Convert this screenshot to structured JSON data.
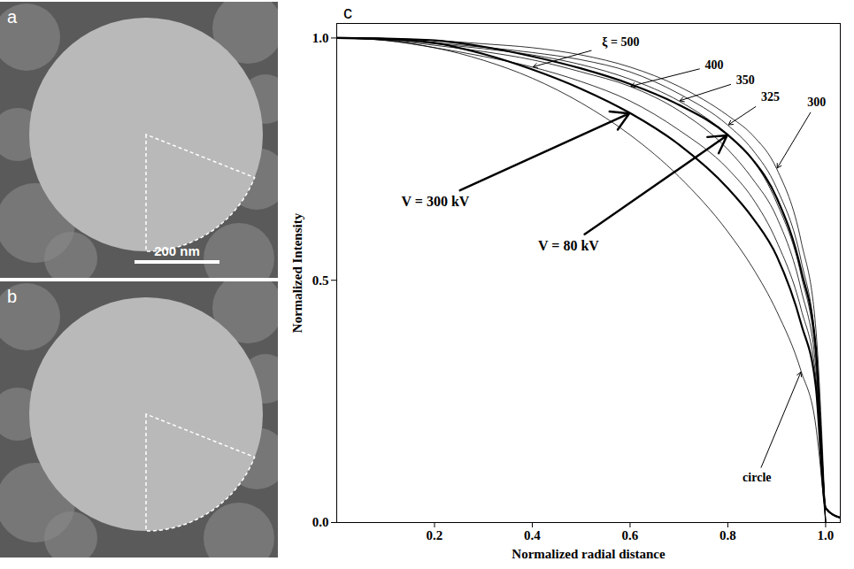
{
  "panels": [
    {
      "label": "a",
      "scale_bar": "200 nm"
    },
    {
      "label": "b"
    }
  ],
  "chart_data": {
    "type": "line",
    "panel_label": "c",
    "x_label": "Normalized radial distance",
    "y_label": "Normalized Intensity",
    "xlim": [
      0,
      1.03
    ],
    "ylim": [
      0,
      1.03
    ],
    "xticks": [
      0.2,
      0.4,
      0.6,
      0.8,
      {
        "value": 1,
        "label": "1.0"
      }
    ],
    "yticks": [
      {
        "value": 0,
        "label": "0.0"
      },
      0.5,
      {
        "value": 1,
        "label": "1.0"
      }
    ],
    "x": [
      0,
      0.1,
      0.2,
      0.3,
      0.4,
      0.5,
      0.6,
      0.7,
      0.8,
      0.85,
      0.9,
      0.95,
      0.98,
      1,
      1.03
    ],
    "series": [
      {
        "name": "V = 300 kV",
        "color": "#000000",
        "line_style": "thick",
        "values": [
          1,
          0.998,
          0.99,
          0.967,
          0.935,
          0.895,
          0.845,
          0.78,
          0.69,
          0.63,
          0.55,
          0.41,
          0.28,
          0.03,
          0.01
        ],
        "annotation": {
          "x": 0.6,
          "y": 0.845
        }
      },
      {
        "name": "V = 80 kV",
        "color": "#000000",
        "line_style": "thick",
        "values": [
          1,
          0.999,
          0.995,
          0.982,
          0.962,
          0.937,
          0.905,
          0.862,
          0.8,
          0.75,
          0.67,
          0.52,
          0.36,
          0.03,
          0.01
        ],
        "annotation": {
          "x": 0.8,
          "y": 0.8
        }
      },
      {
        "name": "ξ = 500",
        "color": "#000000",
        "line_style": "thin",
        "values": [
          1,
          0.995,
          0.98,
          0.962,
          0.94,
          0.91,
          0.87,
          0.81,
          0.73,
          0.67,
          0.58,
          0.44,
          0.3,
          0,
          null
        ],
        "annotation": {
          "x": 0.4,
          "y": 0.94
        }
      },
      {
        "name": "400",
        "color": "#000000",
        "line_style": "thin",
        "values": [
          1,
          0.996,
          0.985,
          0.972,
          0.955,
          0.93,
          0.9,
          0.85,
          0.77,
          0.71,
          0.63,
          0.48,
          0.32,
          0,
          null
        ],
        "annotation": {
          "x": 0.6,
          "y": 0.9
        }
      },
      {
        "name": "350",
        "color": "#000000",
        "line_style": "thin",
        "values": [
          1,
          0.997,
          0.988,
          0.978,
          0.965,
          0.945,
          0.915,
          0.87,
          0.8,
          0.75,
          0.66,
          0.51,
          0.34,
          0,
          null
        ],
        "annotation": {
          "x": 0.7,
          "y": 0.87
        }
      },
      {
        "name": "325",
        "color": "#000000",
        "line_style": "thin",
        "values": [
          1,
          0.998,
          0.99,
          0.981,
          0.97,
          0.955,
          0.93,
          0.885,
          0.82,
          0.77,
          0.69,
          0.54,
          0.36,
          0,
          null
        ],
        "annotation": {
          "x": 0.8,
          "y": 0.82
        }
      },
      {
        "name": "300",
        "color": "#000000",
        "line_style": "thin",
        "values": [
          1,
          0.999,
          0.995,
          0.988,
          0.98,
          0.965,
          0.94,
          0.9,
          0.84,
          0.8,
          0.73,
          0.58,
          0.4,
          0,
          null
        ],
        "annotation": {
          "x": 0.9,
          "y": 0.73
        }
      },
      {
        "name": "circle",
        "color": "#000000",
        "line_style": "thin",
        "values": [
          1,
          0.995,
          0.98,
          0.954,
          0.917,
          0.866,
          0.8,
          0.714,
          0.6,
          0.527,
          0.436,
          0.312,
          0.199,
          0,
          null
        ],
        "annotation": {
          "x": 0.95,
          "y": 0.312
        }
      }
    ]
  }
}
